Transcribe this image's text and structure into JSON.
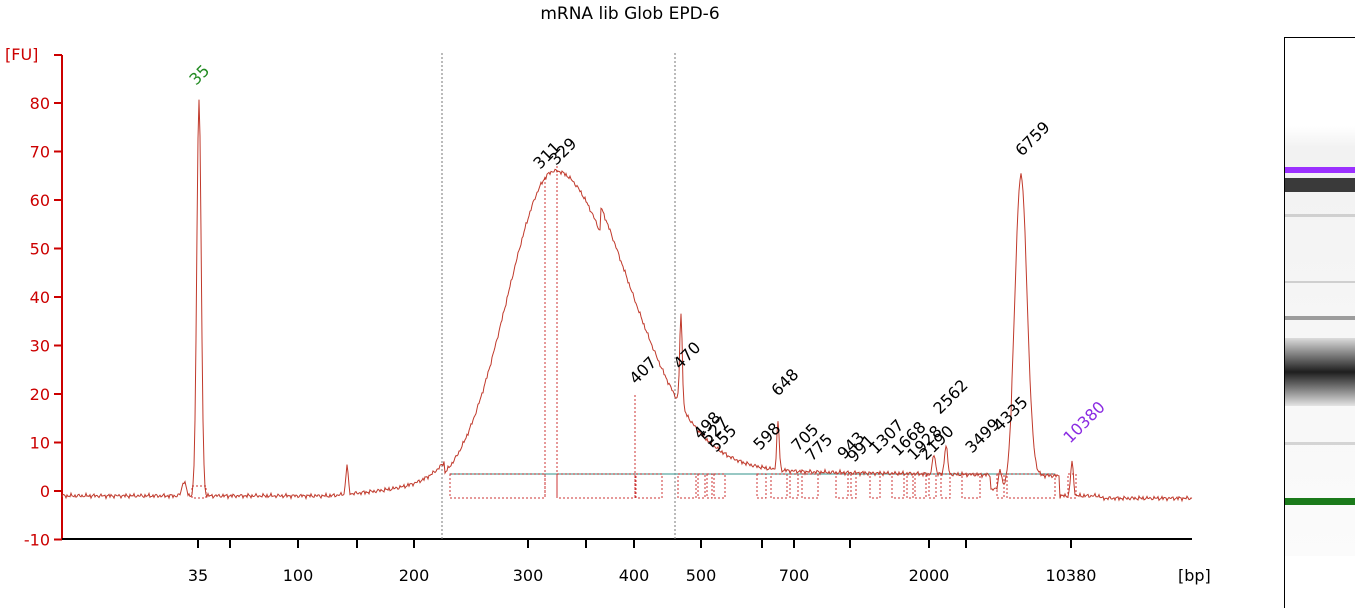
{
  "title": "mRNA lib Glob EPD-6",
  "chart_data": {
    "type": "line",
    "title": "mRNA lib Glob EPD-6",
    "ylabel": "[FU]",
    "xlabel": "[bp]",
    "ylim": [
      -10,
      85
    ],
    "yticks": [
      -10,
      0,
      10,
      20,
      30,
      40,
      50,
      60,
      70,
      80
    ],
    "xtick_labels": [
      "35",
      "100",
      "200",
      "300",
      "400",
      "500",
      "700",
      "2000",
      "10380"
    ],
    "grid": false,
    "region_markers_bp": [
      230,
      460
    ],
    "peaks": [
      {
        "label": "35",
        "color": "#228b22",
        "y": 82
      },
      {
        "label": "311",
        "color": "#000000",
        "y": 66
      },
      {
        "label": "329",
        "color": "#000000",
        "y": 67
      },
      {
        "label": "407",
        "color": "#000000",
        "y": 19
      },
      {
        "label": "470",
        "color": "#000000",
        "y": 23
      },
      {
        "label": "498",
        "color": "#000000",
        "y": 9
      },
      {
        "label": "527",
        "color": "#000000",
        "y": 8
      },
      {
        "label": "555",
        "color": "#000000",
        "y": 8
      },
      {
        "label": "598",
        "color": "#000000",
        "y": 10
      },
      {
        "label": "648",
        "color": "#000000",
        "y": 16
      },
      {
        "label": "705",
        "color": "#000000",
        "y": 7
      },
      {
        "label": "775",
        "color": "#000000",
        "y": 6
      },
      {
        "label": "943",
        "color": "#000000",
        "y": 6
      },
      {
        "label": "991",
        "color": "#000000",
        "y": 6
      },
      {
        "label": "1307",
        "color": "#000000",
        "y": 6
      },
      {
        "label": "1668",
        "color": "#000000",
        "y": 6
      },
      {
        "label": "1928",
        "color": "#000000",
        "y": 7
      },
      {
        "label": "2190",
        "color": "#000000",
        "y": 8
      },
      {
        "label": "2562",
        "color": "#000000",
        "y": 12
      },
      {
        "label": "3499",
        "color": "#000000",
        "y": 8
      },
      {
        "label": "4335",
        "color": "#000000",
        "y": 9
      },
      {
        "label": "6759",
        "color": "#000000",
        "y": 66
      },
      {
        "label": "10380",
        "color": "#8a2be2",
        "y": 8
      }
    ]
  },
  "gel": {
    "upper_marker_color": "#9b30ff",
    "lower_marker_color": "#1a7a1a"
  }
}
